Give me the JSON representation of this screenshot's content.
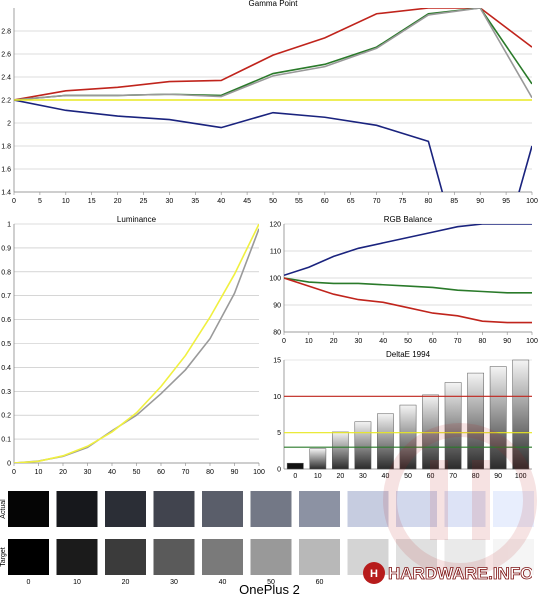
{
  "footer_label": "OnePlus 2",
  "logo_text": "HARDWARE.INFO",
  "chart_data": [
    {
      "type": "line",
      "title": "Gamma Point",
      "x": [
        0,
        10,
        20,
        30,
        40,
        50,
        60,
        70,
        80,
        90,
        100
      ],
      "xticks": [
        0,
        5,
        10,
        15,
        20,
        25,
        30,
        35,
        40,
        45,
        50,
        55,
        60,
        65,
        70,
        75,
        80,
        85,
        90,
        95,
        100
      ],
      "yticks": [
        1.4,
        1.6,
        1.8,
        2,
        2.2,
        2.4,
        2.6,
        2.8
      ],
      "ylim": [
        1.4,
        3.0
      ],
      "grid": true,
      "series": [
        {
          "color": "#c0241c",
          "values": [
            2.2,
            2.28,
            2.31,
            2.36,
            2.37,
            2.59,
            2.74,
            2.95,
            3.0,
            3.0,
            2.66
          ]
        },
        {
          "color": "#2a7a2a",
          "values": [
            2.2,
            2.24,
            2.24,
            2.25,
            2.24,
            2.43,
            2.51,
            2.66,
            2.95,
            3.0,
            2.34
          ]
        },
        {
          "color": "#999999",
          "values": [
            2.2,
            2.24,
            2.24,
            2.25,
            2.23,
            2.41,
            2.49,
            2.65,
            2.94,
            3.0,
            2.22
          ]
        },
        {
          "color": "#1a237e",
          "values": [
            2.2,
            2.11,
            2.06,
            2.03,
            1.96,
            2.09,
            2.05,
            1.98,
            1.84,
            0.2,
            1.8
          ]
        },
        {
          "color": "#e8e820",
          "values": [
            2.2,
            2.2,
            2.2,
            2.2,
            2.2,
            2.2,
            2.2,
            2.2,
            2.2,
            2.2,
            2.2
          ]
        }
      ]
    },
    {
      "type": "line",
      "title": "Luminance",
      "x": [
        0,
        10,
        20,
        30,
        40,
        50,
        60,
        70,
        80,
        90,
        100
      ],
      "xticks": [
        0,
        10,
        20,
        30,
        40,
        50,
        60,
        70,
        80,
        90,
        100
      ],
      "yticks": [
        0,
        0.1,
        0.2,
        0.3,
        0.4,
        0.5,
        0.6,
        0.7,
        0.8,
        0.9,
        1
      ],
      "ylim": [
        0,
        1
      ],
      "grid": true,
      "series": [
        {
          "color": "#9a9a9a",
          "values": [
            0,
            0.008,
            0.028,
            0.065,
            0.135,
            0.2,
            0.29,
            0.39,
            0.52,
            0.71,
            0.98
          ]
        },
        {
          "color": "#f0f040",
          "values": [
            0,
            0.007,
            0.03,
            0.07,
            0.13,
            0.21,
            0.32,
            0.45,
            0.61,
            0.79,
            1.0
          ]
        }
      ]
    },
    {
      "type": "line",
      "title": "RGB Balance",
      "x": [
        0,
        10,
        20,
        30,
        40,
        50,
        60,
        70,
        80,
        90,
        100
      ],
      "xticks": [
        0,
        10,
        20,
        30,
        40,
        50,
        60,
        70,
        80,
        90,
        100
      ],
      "yticks": [
        80,
        90,
        100,
        110,
        120
      ],
      "ylim": [
        80,
        120
      ],
      "grid": true,
      "series": [
        {
          "color": "#1a237e",
          "values": [
            101,
            104,
            108,
            111,
            113,
            115,
            117,
            119,
            120,
            120,
            120
          ]
        },
        {
          "color": "#2a7a2a",
          "values": [
            100,
            98.5,
            98,
            98,
            97.5,
            97,
            96.5,
            95.5,
            95,
            94.5,
            94.5
          ]
        },
        {
          "color": "#c0241c",
          "values": [
            100,
            97,
            94,
            92,
            91,
            89,
            87,
            86,
            84,
            83.5,
            83.5
          ]
        }
      ]
    },
    {
      "type": "bar",
      "title": "DeltaE 1994",
      "categories": [
        "0",
        "10",
        "20",
        "30",
        "40",
        "50",
        "60",
        "70",
        "80",
        "90",
        "100"
      ],
      "values": [
        0.8,
        2.8,
        5.1,
        6.5,
        7.6,
        8.8,
        10.2,
        11.9,
        13.2,
        14.1,
        15
      ],
      "yticks": [
        0,
        5,
        10,
        15
      ],
      "ylim": [
        0,
        15
      ],
      "reference_lines": [
        {
          "value": 10,
          "color": "#c0241c"
        },
        {
          "value": 5,
          "color": "#e8e820"
        },
        {
          "value": 3,
          "color": "#2a7a2a"
        }
      ]
    }
  ],
  "swatches": {
    "row_labels": {
      "actual": "Actual",
      "target": "Target"
    },
    "labels": [
      "0",
      "10",
      "20",
      "30",
      "40",
      "50",
      "60",
      "",
      "",
      "",
      ""
    ],
    "actual_colors": [
      "#050505",
      "#17181c",
      "#2b2e36",
      "#41444e",
      "#5a5e6a",
      "#737886",
      "#8c92a3",
      "#c6cce0",
      "#d2d8ec",
      "#dde3f6",
      "#e8eefd"
    ],
    "target_colors": [
      "#000000",
      "#1b1b1b",
      "#3b3b3b",
      "#5a5a5a",
      "#7a7a7a",
      "#999999",
      "#b8b8b8",
      "#d4d4d4",
      "#e0e0e0",
      "#eaeaea",
      "#f5f5f5"
    ]
  }
}
